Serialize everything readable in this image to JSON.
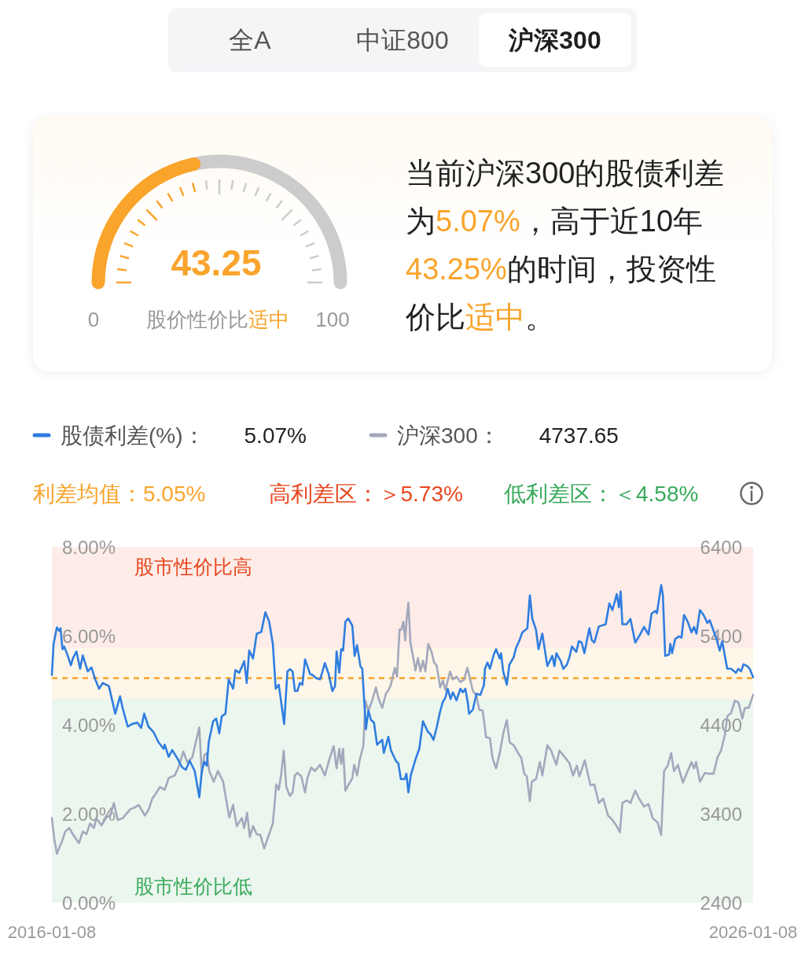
{
  "chart_data": [
    {
      "type": "other",
      "annotations": [
        "全A",
        "中证800",
        "沪深300"
      ]
    },
    {
      "type": "donut",
      "categories": [
        null,
        null
      ],
      "values": [
        43.25,
        56.75
      ],
      "colors": [
        "#f9a42b",
        "#cccccc"
      ],
      "value_labels": [
        "43.25",
        null
      ],
      "annotations": [
        "0",
        "100",
        "股价性价比",
        "适中"
      ]
    },
    {
      "type": "other",
      "color": "#f9a42b",
      "annotations": [
        "当前沪深300的股债利差为",
        "5.07%",
        "，高于近10年",
        "43.25%",
        "的时间，投资性价比",
        "适中",
        "。"
      ]
    },
    {
      "type": "line",
      "legend": "top",
      "xlim": [
        "2016-01-08",
        "2026-01-08"
      ],
      "xticks": [
        "2016-01-08",
        "2026-01-08"
      ],
      "ylim": [
        0,
        8
      ],
      "yticks": [
        {
          "value": 0,
          "label": "0.00%"
        },
        {
          "value": 2,
          "label": "2.00%"
        },
        {
          "value": 4,
          "label": "4.00%"
        },
        {
          "value": 6,
          "label": "6.00%"
        },
        {
          "value": 8,
          "label": "8.00%"
        }
      ],
      "y2lim": [
        2400,
        6400
      ],
      "y2ticks": [
        2400,
        3400,
        4400,
        5400,
        6400
      ],
      "bands": [
        {
          "axis": "y",
          "from": 5.73,
          "to": 8,
          "label": "高利差区：＞5.73%",
          "color": "#e8471e"
        },
        {
          "axis": "y",
          "from": 4.58,
          "to": 5.73,
          "color": "#f9a42b"
        },
        {
          "axis": "y",
          "from": 0,
          "to": 4.58,
          "label": "低利差区：＜4.58%",
          "color": "#3aaa5c"
        }
      ],
      "ref_lines": [
        {
          "axis": "y",
          "value": 5.05,
          "label": "利差均值：5.05%",
          "color": "#f9a42b",
          "line_style": "dashed"
        }
      ],
      "annotations": [
        "5.07%",
        "4737.65",
        "股市性价比高",
        "股市性价比低"
      ],
      "series": [
        {
          "name": "股债利差(%)：",
          "type": "line",
          "color": "#2f7de0",
          "x": [
            "2016-01-08",
            "2016-01-17",
            "2016-02-03",
            "2016-02-16",
            "2016-02-22",
            "2016-03-03",
            "2016-03-12",
            "2016-03-30",
            "2016-04-16",
            "2016-04-26",
            "2016-05-15",
            "2016-06-03",
            "2016-06-17",
            "2016-07-13",
            "2016-08-01",
            "2016-08-21",
            "2016-09-10",
            "2016-09-29",
            "2016-10-31",
            "2016-12-03",
            "2016-12-28",
            "2017-01-11",
            "2017-02-06",
            "2017-03-02",
            "2017-03-28",
            "2017-04-17",
            "2017-05-03",
            "2017-05-25",
            "2017-06-20",
            "2017-07-16",
            "2017-08-12",
            "2017-08-18",
            "2017-09-07",
            "2017-09-26",
            "2017-10-22",
            "2017-11-17",
            "2017-12-06",
            "2017-12-26",
            "2018-01-21",
            "2018-02-14",
            "2018-02-27",
            "2018-03-12",
            "2018-03-25",
            "2018-04-04",
            "2018-04-27",
            "2018-05-13",
            "2018-05-29",
            "2018-06-11",
            "2018-06-30",
            "2018-07-17",
            "2018-08-09",
            "2018-08-21",
            "2018-09-10",
            "2018-10-06",
            "2018-10-19",
            "2018-11-01",
            "2018-11-21",
            "2018-12-10",
            "2019-01-03",
            "2019-01-24",
            "2019-02-13",
            "2019-03-04",
            "2019-03-19",
            "2019-04-04",
            "2019-05-02",
            "2019-05-19",
            "2019-06-01",
            "2019-06-15",
            "2019-06-27",
            "2019-07-10",
            "2019-07-23",
            "2019-08-05",
            "2019-08-19",
            "2019-08-31",
            "2019-09-14",
            "2019-09-27",
            "2019-10-16",
            "2019-11-05",
            "2019-11-18",
            "2019-11-30",
            "2019-12-20",
            "2020-01-08",
            "2020-01-22",
            "2020-01-30",
            "2020-02-13",
            "2020-02-23",
            "2020-03-04",
            "2020-03-16",
            "2020-03-31",
            "2020-04-21",
            "2020-05-03",
            "2020-05-16",
            "2020-06-02",
            "2020-06-12",
            "2020-07-01",
            "2020-07-14",
            "2020-07-27",
            "2020-08-12",
            "2020-08-28",
            "2020-09-11",
            "2020-09-24",
            "2020-10-02",
            "2020-10-26",
            "2020-11-08",
            "2020-12-04",
            "2020-12-17",
            "2020-12-30",
            "2021-01-19",
            "2021-01-28",
            "2021-02-07",
            "2021-02-20",
            "2021-03-16",
            "2021-04-05",
            "2021-04-24",
            "2021-05-07",
            "2021-05-20",
            "2021-06-02",
            "2021-06-18",
            "2021-07-04",
            "2021-07-23",
            "2021-08-06",
            "2021-08-19",
            "2021-08-31",
            "2021-09-15",
            "2021-09-27",
            "2021-10-16",
            "2021-11-05",
            "2021-11-18",
            "2021-12-01",
            "2021-12-14",
            "2021-12-20",
            "2022-01-09",
            "2022-01-28",
            "2022-02-17",
            "2022-03-08",
            "2022-03-13",
            "2022-03-26",
            "2022-04-08",
            "2022-04-28",
            "2022-05-10",
            "2022-05-29",
            "2022-06-05",
            "2022-06-16",
            "2022-07-05",
            "2022-07-18",
            "2022-08-10",
            "2022-08-22",
            "2022-09-09",
            "2022-09-24",
            "2022-10-20",
            "2022-11-02",
            "2022-11-15",
            "2022-12-04",
            "2022-12-17",
            "2023-01-06",
            "2023-02-01",
            "2023-02-27",
            "2023-03-10",
            "2023-03-20",
            "2023-04-12",
            "2023-04-25",
            "2023-05-14",
            "2023-05-27",
            "2023-06-09",
            "2023-07-02",
            "2023-07-15",
            "2023-07-30",
            "2023-08-13",
            "2023-09-08",
            "2023-09-21",
            "2023-10-04",
            "2023-10-27",
            "2023-12-02",
            "2023-12-21",
            "2024-01-06",
            "2024-01-29",
            "2024-02-09",
            "2024-02-18",
            "2024-02-27",
            "2024-03-20",
            "2024-04-09",
            "2024-05-04",
            "2024-05-24",
            "2024-06-19",
            "2024-07-12",
            "2024-07-28",
            "2024-08-17",
            "2024-08-25",
            "2024-09-16",
            "2024-09-25",
            "2024-10-07",
            "2024-10-27",
            "2024-11-03",
            "2024-11-12",
            "2024-11-28",
            "2024-12-18",
            "2024-12-31",
            "2025-01-13",
            "2025-02-01",
            "2025-02-21",
            "2025-03-06",
            "2025-03-19",
            "2025-04-06",
            "2025-04-25",
            "2025-05-15",
            "2025-05-27",
            "2025-06-29",
            "2025-07-18",
            "2025-07-31",
            "2025-08-26",
            "2025-09-15",
            "2025-10-11",
            "2025-10-23",
            "2025-11-06",
            "2025-11-19",
            "2025-12-08",
            "2025-12-21",
            "2026-01-08"
          ],
          "values": [
            5.12,
            5.82,
            6.19,
            6.11,
            6.17,
            5.7,
            5.76,
            5.56,
            5.34,
            5.49,
            5.65,
            5.26,
            5.56,
            5.2,
            5.29,
            5.02,
            4.81,
            4.94,
            4.87,
            4.25,
            4.64,
            4.37,
            3.96,
            4.02,
            4.05,
            3.93,
            4.25,
            3.96,
            3.84,
            3.61,
            3.46,
            3.55,
            3.28,
            3.43,
            3.25,
            3.04,
            2.99,
            3.19,
            2.96,
            2.37,
            2.96,
            3.17,
            3.08,
            3.61,
            4.08,
            4.14,
            3.81,
            4.19,
            4.25,
            5.02,
            4.81,
            5.23,
            5.17,
            5.43,
            4.94,
            5.67,
            5.49,
            6.05,
            6.09,
            6.53,
            6.32,
            5.82,
            4.81,
            4.9,
            4.02,
            5.2,
            5.25,
            5.2,
            4.76,
            4.76,
            4.94,
            4.9,
            5.47,
            5.32,
            5.14,
            5.12,
            5.05,
            5.02,
            5.2,
            5.39,
            5.14,
            4.76,
            4.87,
            5.65,
            5.17,
            5.7,
            5.67,
            6.32,
            6.39,
            6.23,
            5.55,
            5.79,
            5.32,
            5.26,
            3.9,
            4.32,
            4.11,
            4.05,
            3.55,
            3.61,
            3.66,
            3.37,
            3.73,
            3.43,
            3.19,
            3.13,
            2.78,
            2.78,
            2.9,
            2.48,
            2.87,
            3.22,
            3.46,
            4.08,
            3.96,
            3.84,
            3.79,
            3.66,
            3.93,
            4.31,
            4.52,
            4.61,
            4.81,
            4.58,
            4.73,
            4.55,
            4.81,
            4.73,
            4.81,
            4.49,
            4.25,
            4.34,
            4.7,
            4.67,
            4.9,
            5.26,
            5.4,
            5.26,
            5.58,
            5.7,
            5.49,
            5.61,
            5.2,
            4.9,
            5.35,
            5.52,
            5.73,
            5.9,
            6.08,
            6.17,
            6.91,
            6.38,
            6.14,
            5.7,
            6.05,
            5.32,
            5.55,
            5.32,
            5.61,
            5.43,
            5.26,
            5.35,
            5.52,
            5.76,
            5.64,
            5.88,
            5.85,
            5.61,
            6.17,
            5.9,
            5.85,
            6.21,
            6.26,
            6.73,
            6.58,
            6.94,
            6.64,
            7.0,
            6.26,
            6.26,
            6.38,
            5.85,
            5.99,
            6.2,
            6.03,
            6.5,
            6.56,
            6.51,
            7.14,
            6.91,
            5.55,
            5.58,
            5.82,
            5.61,
            5.93,
            5.99,
            5.96,
            6.47,
            6.32,
            6.08,
            6.2,
            6.05,
            6.58,
            6.47,
            6.29,
            6.35,
            5.96,
            5.67,
            5.88,
            5.26,
            5.26,
            5.17,
            5.26,
            5.2,
            5.36,
            5.32,
            5.26,
            5.07
          ]
        },
        {
          "name": "沪深300：",
          "type": "line",
          "axis": "y2",
          "color": "#a3a8bc",
          "x": [
            "2016-01-08",
            "2016-01-21",
            "2016-02-03",
            "2016-02-16",
            "2016-02-28",
            "2016-03-18",
            "2016-04-07",
            "2016-04-26",
            "2016-05-28",
            "2016-06-17",
            "2016-07-06",
            "2016-07-25",
            "2016-08-14",
            "2016-08-27",
            "2016-09-22",
            "2016-10-18",
            "2016-11-07",
            "2016-11-26",
            "2016-12-16",
            "2017-01-11",
            "2017-02-19",
            "2017-03-15",
            "2017-04-04",
            "2017-05-06",
            "2017-05-25",
            "2017-06-14",
            "2017-07-04",
            "2017-07-23",
            "2017-08-18",
            "2017-09-07",
            "2017-10-09",
            "2017-10-28",
            "2017-11-23",
            "2017-12-13",
            "2018-01-08",
            "2018-02-14",
            "2018-02-27",
            "2018-03-12",
            "2018-03-25",
            "2018-04-07",
            "2018-04-30",
            "2018-05-22",
            "2018-06-18",
            "2018-07-20",
            "2018-08-09",
            "2018-08-28",
            "2018-09-23",
            "2018-10-06",
            "2018-10-21",
            "2018-11-04",
            "2018-11-21",
            "2018-12-10",
            "2018-12-29",
            "2019-01-18",
            "2019-02-13",
            "2019-03-04",
            "2019-03-22",
            "2019-04-04",
            "2019-04-17",
            "2019-04-30",
            "2019-05-13",
            "2019-06-01",
            "2019-06-15",
            "2019-06-27",
            "2019-07-10",
            "2019-07-30",
            "2019-08-19",
            "2019-08-31",
            "2019-09-20",
            "2019-10-09",
            "2019-11-05",
            "2019-11-30",
            "2019-12-26",
            "2020-01-15",
            "2020-01-30",
            "2020-02-13",
            "2020-02-23",
            "2020-03-04",
            "2020-03-16",
            "2020-03-31",
            "2020-04-21",
            "2020-05-01",
            "2020-05-16",
            "2020-05-29",
            "2020-06-18",
            "2020-06-28",
            "2020-07-14",
            "2020-08-02",
            "2020-08-22",
            "2020-09-04",
            "2020-09-24",
            "2020-10-13",
            "2020-10-26",
            "2020-11-08",
            "2020-11-28",
            "2020-12-10",
            "2020-12-23",
            "2021-01-02",
            "2021-01-12",
            "2021-01-22",
            "2021-01-28",
            "2021-02-07",
            "2021-02-18",
            "2021-03-05",
            "2021-03-16",
            "2021-03-29",
            "2021-04-11",
            "2021-04-24",
            "2021-05-07",
            "2021-05-22",
            "2021-06-09",
            "2021-06-21",
            "2021-07-04",
            "2021-07-23",
            "2021-08-06",
            "2021-08-19",
            "2021-09-12",
            "2021-09-27",
            "2021-10-16",
            "2021-11-05",
            "2021-11-25",
            "2021-12-11",
            "2021-12-26",
            "2022-01-09",
            "2022-01-28",
            "2022-02-11",
            "2022-03-01",
            "2022-03-19",
            "2022-04-08",
            "2022-04-21",
            "2022-05-10",
            "2022-05-29",
            "2022-06-18",
            "2022-07-05",
            "2022-07-20",
            "2022-08-10",
            "2022-09-05",
            "2022-09-18",
            "2022-10-04",
            "2022-10-17",
            "2022-11-02",
            "2022-11-12",
            "2022-12-04",
            "2022-12-24",
            "2023-01-06",
            "2023-02-01",
            "2023-02-21",
            "2023-03-06",
            "2023-03-20",
            "2023-04-05",
            "2023-05-01",
            "2023-05-27",
            "2023-06-15",
            "2023-07-05",
            "2023-07-18",
            "2023-08-15",
            "2023-09-14",
            "2023-10-04",
            "2023-10-27",
            "2023-11-19",
            "2023-12-14",
            "2024-01-06",
            "2024-01-26",
            "2024-02-14",
            "2024-02-27",
            "2024-03-20",
            "2024-04-09",
            "2024-05-04",
            "2024-05-24",
            "2024-06-19",
            "2024-07-12",
            "2024-08-03",
            "2024-08-29",
            "2024-09-16",
            "2024-10-01",
            "2024-10-20",
            "2024-11-07",
            "2024-11-22",
            "2024-12-12",
            "2025-01-07",
            "2025-01-26",
            "2025-02-21",
            "2025-03-06",
            "2025-03-17",
            "2025-04-06",
            "2025-05-02",
            "2025-05-21",
            "2025-06-16",
            "2025-07-06",
            "2025-07-25",
            "2025-08-14",
            "2025-08-27",
            "2025-09-15",
            "2025-10-05",
            "2025-10-24",
            "2025-11-13",
            "2025-11-26",
            "2025-12-16",
            "2026-01-08"
          ],
          "values": [
            3350,
            3110,
            2950,
            3020,
            3080,
            3200,
            3240,
            3170,
            3070,
            3200,
            3170,
            3290,
            3240,
            3350,
            3270,
            3360,
            3380,
            3520,
            3330,
            3350,
            3450,
            3470,
            3500,
            3380,
            3440,
            3570,
            3630,
            3700,
            3670,
            3800,
            3830,
            3920,
            4100,
            3980,
            4030,
            4370,
            3850,
            4060,
            4080,
            3880,
            3760,
            3880,
            3760,
            3360,
            3500,
            3260,
            3350,
            3240,
            3410,
            3140,
            3260,
            3170,
            3160,
            3010,
            3170,
            3290,
            3730,
            3670,
            3850,
            4110,
            3700,
            3600,
            3640,
            3830,
            3860,
            3820,
            3640,
            3800,
            3920,
            3880,
            3950,
            3830,
            4030,
            4160,
            3910,
            4130,
            3960,
            4130,
            3660,
            3720,
            3800,
            3950,
            3830,
            4000,
            4170,
            4670,
            4560,
            4670,
            4820,
            4700,
            4590,
            4750,
            4790,
            4850,
            5040,
            4940,
            5470,
            5470,
            5560,
            5350,
            5560,
            5770,
            5320,
            5150,
            5010,
            5150,
            5000,
            5120,
            5000,
            5310,
            5210,
            5100,
            5070,
            4820,
            4900,
            4790,
            5000,
            4910,
            4940,
            4880,
            4910,
            5040,
            4910,
            4780,
            4730,
            4570,
            4560,
            4260,
            4250,
            4030,
            3910,
            4080,
            4320,
            4450,
            4200,
            4170,
            4070,
            4030,
            3850,
            3820,
            3540,
            3760,
            3790,
            3980,
            3830,
            4170,
            4110,
            4030,
            3950,
            4110,
            4040,
            3970,
            3830,
            3940,
            3820,
            4000,
            3720,
            3730,
            3520,
            3570,
            3380,
            3330,
            3270,
            3190,
            3520,
            3550,
            3520,
            3660,
            3570,
            3480,
            3510,
            3350,
            3300,
            3160,
            3880,
            3940,
            4080,
            3880,
            3950,
            3750,
            3850,
            3980,
            3910,
            3980,
            3760,
            3860,
            3850,
            3850,
            4030,
            4110,
            4290,
            4500,
            4530,
            4670,
            4650,
            4470,
            4590,
            4590,
            4737.65
          ]
        }
      ]
    }
  ]
}
